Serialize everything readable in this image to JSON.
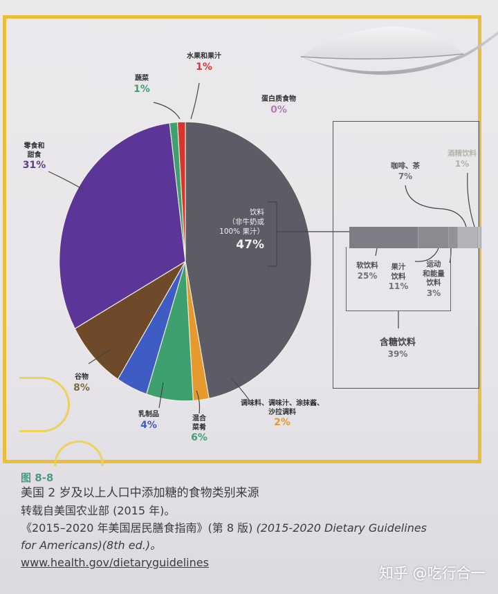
{
  "chart_data": {
    "type": "pie",
    "title": "美国 2 岁及以上人口中添加糖的食物类别来源",
    "start_angle_deg": 0,
    "direction": "clockwise",
    "slices": [
      {
        "label": "饮料（非牛奶或100% 果汁）",
        "value": 47,
        "color": "#5c5c66"
      },
      {
        "label": "调味料、调味汁、涂抹酱、沙拉调料",
        "value": 2,
        "color": "#e69a2e"
      },
      {
        "label": "混合菜肴",
        "value": 6,
        "color": "#3ea06e"
      },
      {
        "label": "乳制品",
        "value": 4,
        "color": "#3e5cc4"
      },
      {
        "label": "谷物",
        "value": 8,
        "color": "#6e4a2a"
      },
      {
        "label": "零食和甜食",
        "value": 31,
        "color": "#5b3597"
      },
      {
        "label": "蔬菜",
        "value": 1,
        "color": "#3ea06e"
      },
      {
        "label": "水果和果汁",
        "value": 1,
        "color": "#d8352e"
      },
      {
        "label": "蛋白质食物",
        "value": 0,
        "color": "#b07fb0"
      }
    ],
    "breakdown": {
      "parent": "饮料（非牛奶或100% 果汁）",
      "type": "stacked-bar",
      "segments": [
        {
          "label": "软饮料",
          "value": 25,
          "color": "#7d7d85"
        },
        {
          "label": "果汁饮料",
          "value": 11,
          "color": "#8a8a90"
        },
        {
          "label": "运动和能量饮料",
          "value": 3,
          "color": "#929297"
        },
        {
          "label": "咖啡、茶",
          "value": 7,
          "color": "#b4b4b8"
        },
        {
          "label": "酒精饮料",
          "value": 1,
          "color": "#bcbcc0"
        }
      ],
      "group": {
        "label": "含糖饮料",
        "value": 39
      }
    }
  },
  "labels": {
    "fruit": {
      "name": "水果和果汁",
      "pct": "1%"
    },
    "vegetables": {
      "name": "蔬菜",
      "pct": "1%"
    },
    "protein": {
      "name": "蛋白质食物",
      "pct": "0%"
    },
    "snacks": {
      "name1": "零食和",
      "name2": "甜食",
      "pct": "31%"
    },
    "beverages": {
      "line1": "饮料",
      "line2": "（非牛奶或",
      "line3": "100% 果汁）",
      "pct": "47%"
    },
    "grains": {
      "name": "谷物",
      "pct": "8%"
    },
    "dairy": {
      "name": "乳制品",
      "pct": "4%"
    },
    "mixed": {
      "name1": "混合",
      "name2": "菜肴",
      "pct": "6%"
    },
    "condiments": {
      "name1": "调味料、调味汁、涂抹酱、",
      "name2": "沙拉调料",
      "pct": "2%"
    },
    "coffee_tea": {
      "name": "咖啡、茶",
      "pct": "7%"
    },
    "alcohol": {
      "name": "酒精饮料",
      "pct": "1%"
    },
    "soft_drinks": {
      "name": "软饮料",
      "pct": "25%"
    },
    "fruit_drinks": {
      "name1": "果汁",
      "name2": "饮料",
      "pct": "11%"
    },
    "sports_drinks": {
      "name1": "运动",
      "name2": "和能量",
      "name3": "饮料",
      "pct": "3%"
    },
    "sweetened": {
      "name": "含糖饮料",
      "pct": "39%"
    }
  },
  "caption": {
    "figure_no": "图 8-8",
    "line1": "美国 2 岁及以上人口中添加糖的食物类别来源",
    "line2": "转载自美国农业部 (2015 年)。",
    "line3a": "《2015–2020 年美国居民膳食指南》(第 8 版) ",
    "line3b": "(2015-2020 Dietary Guidelines",
    "line4": "for Americans)(8th ed.)。",
    "url": "www.health.gov/dietaryguidelines"
  },
  "watermark": "知乎 @吃行合一"
}
